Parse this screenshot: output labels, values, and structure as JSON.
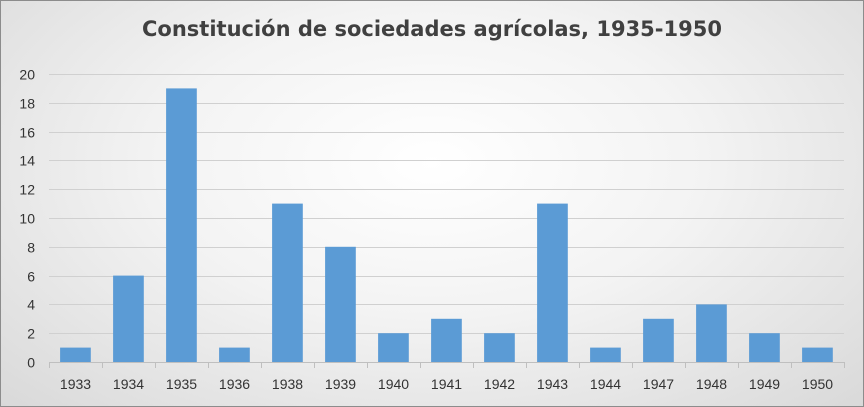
{
  "chart_data": {
    "type": "bar",
    "title": "Constitución de sociedades agrícolas, 1935-1950",
    "xlabel": "",
    "ylabel": "",
    "categories": [
      "1933",
      "1934",
      "1935",
      "1936",
      "1938",
      "1939",
      "1940",
      "1941",
      "1942",
      "1943",
      "1944",
      "1947",
      "1948",
      "1949",
      "1950"
    ],
    "values": [
      1,
      6,
      19,
      1,
      11,
      8,
      2,
      3,
      2,
      11,
      1,
      3,
      4,
      2,
      1
    ],
    "ylim": [
      0,
      20
    ],
    "yticks": [
      "0",
      "2",
      "4",
      "6",
      "8",
      "10",
      "12",
      "14",
      "16",
      "18",
      "20"
    ],
    "grid": true,
    "legend": "none",
    "bar_color": "#5b9bd5"
  }
}
